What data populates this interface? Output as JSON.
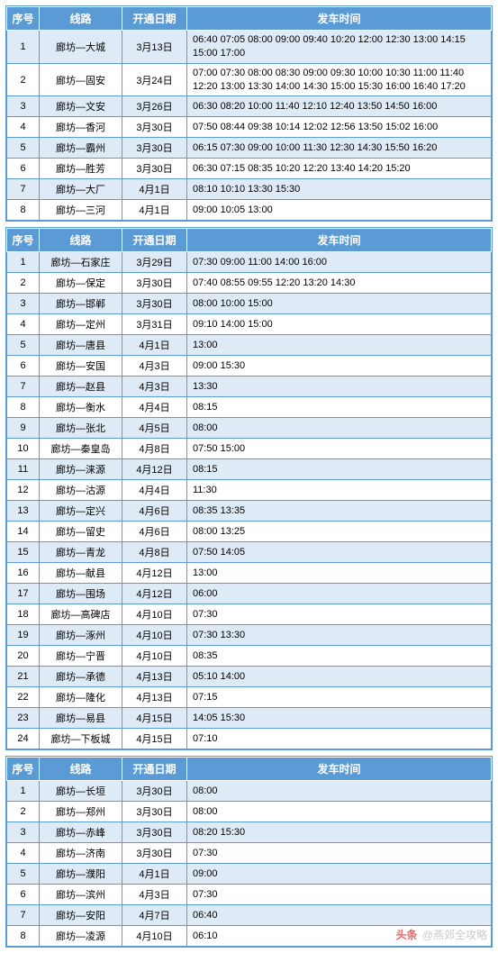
{
  "headers": {
    "idx": "序号",
    "route": "线路",
    "date": "开通日期",
    "times": "发车时间"
  },
  "styles": {
    "header_bg": "#5b9bd5",
    "header_fg": "#ffffff",
    "row_odd_bg": "#deeaf6",
    "row_even_bg": "#ffffff",
    "border_color": "#5b9bd5",
    "font_size_body": 11,
    "font_size_header": 12
  },
  "watermark": {
    "logo": "头条",
    "text": "@燕郊全攻略"
  },
  "tables": [
    {
      "rows": [
        {
          "idx": "1",
          "route": "廊坊—大城",
          "date": "3月13日",
          "times": "06:40 07:05 08:00 09:00 09:40 10:20 12:00 12:30 13:00 14:15 15:00 17:00"
        },
        {
          "idx": "2",
          "route": "廊坊—固安",
          "date": "3月24日",
          "times": "07:00 07:30 08:00 08:30 09:00 09:30 10:00 10:30 11:00 11:40 12:20 13:00 13:30 14:00 14:30 15:00 15:30 16:00 16:40 17:20"
        },
        {
          "idx": "3",
          "route": "廊坊—文安",
          "date": "3月26日",
          "times": "06:30 08:20 10:00 11:40 12:10 12:40 13:50 14:50 16:00"
        },
        {
          "idx": "4",
          "route": "廊坊—香河",
          "date": "3月30日",
          "times": "07:50 08:44 09:38 10:14 12:02 12:56 13:50 15:02 16:00"
        },
        {
          "idx": "5",
          "route": "廊坊—霸州",
          "date": "3月30日",
          "times": "06:15 07:30 09:00 10:00 11:30 12:30 14:30 15:50 16:20"
        },
        {
          "idx": "6",
          "route": "廊坊—胜芳",
          "date": "3月30日",
          "times": "06:30 07:15 08:35 10:20 12:20 13:40 14:20 15:20"
        },
        {
          "idx": "7",
          "route": "廊坊—大厂",
          "date": "4月1日",
          "times": "08:10 10:10 13:30 15:30"
        },
        {
          "idx": "8",
          "route": "廊坊—三河",
          "date": "4月1日",
          "times": "09:00 10:05 13:00"
        }
      ]
    },
    {
      "rows": [
        {
          "idx": "1",
          "route": "廊坊—石家庄",
          "date": "3月29日",
          "times": "07:30 09:00 11:00 14:00 16:00"
        },
        {
          "idx": "2",
          "route": "廊坊—保定",
          "date": "3月30日",
          "times": "07:40 08:55 09:55 12:20 13:20 14:30"
        },
        {
          "idx": "3",
          "route": "廊坊—邯郸",
          "date": "3月30日",
          "times": "08:00 10:00 15:00"
        },
        {
          "idx": "4",
          "route": "廊坊—定州",
          "date": "3月31日",
          "times": "09:10 14:00 15:00"
        },
        {
          "idx": "5",
          "route": "廊坊—唐县",
          "date": "4月1日",
          "times": "13:00"
        },
        {
          "idx": "6",
          "route": "廊坊—安国",
          "date": "4月3日",
          "times": "09:00 15:30"
        },
        {
          "idx": "7",
          "route": "廊坊—赵县",
          "date": "4月3日",
          "times": "13:30"
        },
        {
          "idx": "8",
          "route": "廊坊—衡水",
          "date": "4月4日",
          "times": "08:15"
        },
        {
          "idx": "9",
          "route": "廊坊—张北",
          "date": "4月5日",
          "times": "08:00"
        },
        {
          "idx": "10",
          "route": "廊坊—秦皇岛",
          "date": "4月8日",
          "times": "07:50 15:00"
        },
        {
          "idx": "11",
          "route": "廊坊—涞源",
          "date": "4月12日",
          "times": "08:15"
        },
        {
          "idx": "12",
          "route": "廊坊—沽源",
          "date": "4月4日",
          "times": "11:30"
        },
        {
          "idx": "13",
          "route": "廊坊—定兴",
          "date": "4月6日",
          "times": "08:35 13:35"
        },
        {
          "idx": "14",
          "route": "廊坊—留史",
          "date": "4月6日",
          "times": "08:00 13:25"
        },
        {
          "idx": "15",
          "route": "廊坊—青龙",
          "date": "4月8日",
          "times": "07:50 14:05"
        },
        {
          "idx": "16",
          "route": "廊坊—献县",
          "date": "4月12日",
          "times": "13:00"
        },
        {
          "idx": "17",
          "route": "廊坊—围场",
          "date": "4月12日",
          "times": "06:00"
        },
        {
          "idx": "18",
          "route": "廊坊—高碑店",
          "date": "4月10日",
          "times": "07:30"
        },
        {
          "idx": "19",
          "route": "廊坊—涿州",
          "date": "4月10日",
          "times": "07:30 13:30"
        },
        {
          "idx": "20",
          "route": "廊坊—宁晋",
          "date": "4月10日",
          "times": "08:35"
        },
        {
          "idx": "21",
          "route": "廊坊—承德",
          "date": "4月13日",
          "times": "05:10 14:00"
        },
        {
          "idx": "22",
          "route": "廊坊—隆化",
          "date": "4月13日",
          "times": "07:15"
        },
        {
          "idx": "23",
          "route": "廊坊—易县",
          "date": "4月15日",
          "times": "14:05 15:30"
        },
        {
          "idx": "24",
          "route": "廊坊—下板城",
          "date": "4月15日",
          "times": "07:10"
        }
      ]
    },
    {
      "rows": [
        {
          "idx": "1",
          "route": "廊坊—长垣",
          "date": "3月30日",
          "times": "08:00"
        },
        {
          "idx": "2",
          "route": "廊坊—郑州",
          "date": "3月30日",
          "times": "08:00"
        },
        {
          "idx": "3",
          "route": "廊坊—赤峰",
          "date": "3月30日",
          "times": "08:20 15:30"
        },
        {
          "idx": "4",
          "route": "廊坊—济南",
          "date": "3月30日",
          "times": "07:30"
        },
        {
          "idx": "5",
          "route": "廊坊—濮阳",
          "date": "4月1日",
          "times": "09:00"
        },
        {
          "idx": "6",
          "route": "廊坊—滨州",
          "date": "4月3日",
          "times": "07:30"
        },
        {
          "idx": "7",
          "route": "廊坊—安阳",
          "date": "4月7日",
          "times": "06:40"
        },
        {
          "idx": "8",
          "route": "廊坊—凌源",
          "date": "4月10日",
          "times": "06:10"
        }
      ]
    }
  ]
}
